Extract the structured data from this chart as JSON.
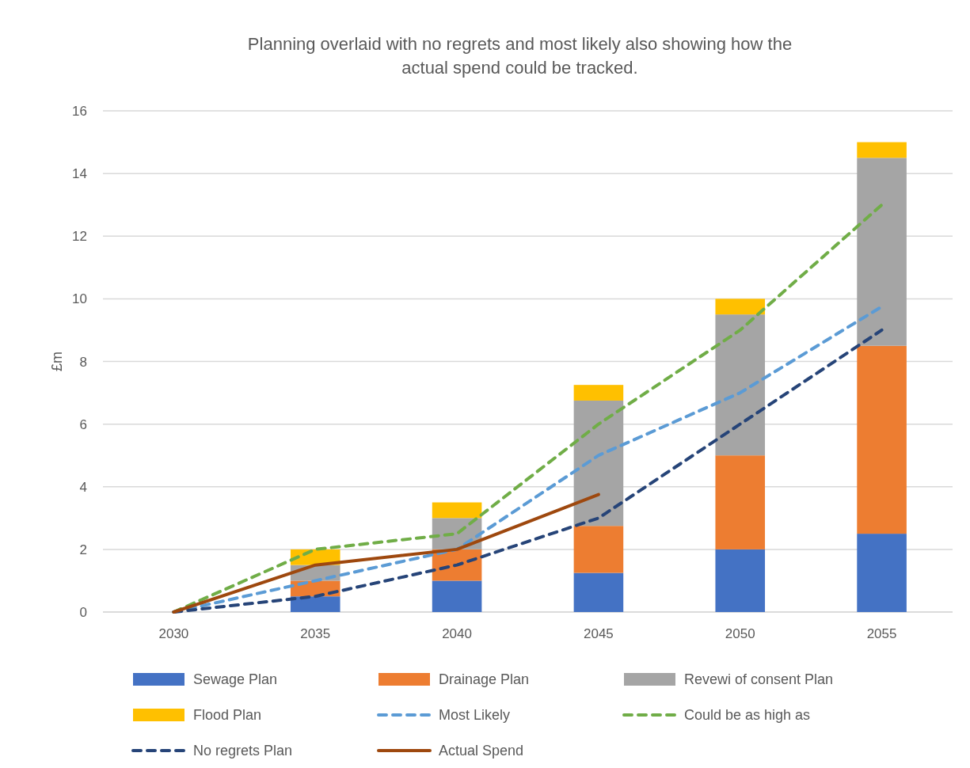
{
  "chart_data": {
    "type": "bar",
    "title": "Planning overlaid with no regrets and most likely also showing how the actual spend could be tracked.",
    "ylabel": "£m",
    "categories": [
      "2030",
      "2035",
      "2040",
      "2045",
      "2050",
      "2055"
    ],
    "stacked": true,
    "ylim": [
      0,
      16
    ],
    "yticks": [
      0,
      2,
      4,
      6,
      8,
      10,
      12,
      14,
      16
    ],
    "grid": "y",
    "legend": "bottom",
    "series": [
      {
        "name": "Sewage Plan",
        "color": "#4472c4",
        "values": [
          0,
          0.5,
          1,
          1.25,
          2,
          2.5
        ]
      },
      {
        "name": "Drainage Plan",
        "color": "#ed7d31",
        "values": [
          0,
          0.5,
          1,
          1.5,
          3,
          6
        ]
      },
      {
        "name": "Revewi of consent Plan",
        "color": "#a5a5a5",
        "values": [
          0,
          0.5,
          1,
          4,
          4.5,
          6
        ]
      },
      {
        "name": "Flood Plan",
        "color": "#ffc000",
        "values": [
          0,
          0.5,
          0.5,
          0.5,
          0.5,
          0.5
        ]
      },
      {
        "name": "Most Likely",
        "type": "line",
        "line_style": "dashed",
        "color": "#5b9bd5",
        "values": [
          0,
          1,
          2,
          5,
          7,
          9.75
        ]
      },
      {
        "name": "Could be as high as",
        "type": "line",
        "line_style": "dashed",
        "color": "#70ad47",
        "values": [
          0,
          2,
          2.5,
          6,
          9,
          13
        ]
      },
      {
        "name": "No regrets Plan",
        "type": "line",
        "line_style": "dashed",
        "color": "#264478",
        "values": [
          0,
          0.5,
          1.5,
          3,
          6,
          9
        ]
      },
      {
        "name": "Actual Spend",
        "type": "line",
        "line_style": "solid",
        "color": "#9e480e",
        "values": [
          0,
          1.5,
          2,
          3.75,
          null,
          null
        ]
      }
    ]
  }
}
